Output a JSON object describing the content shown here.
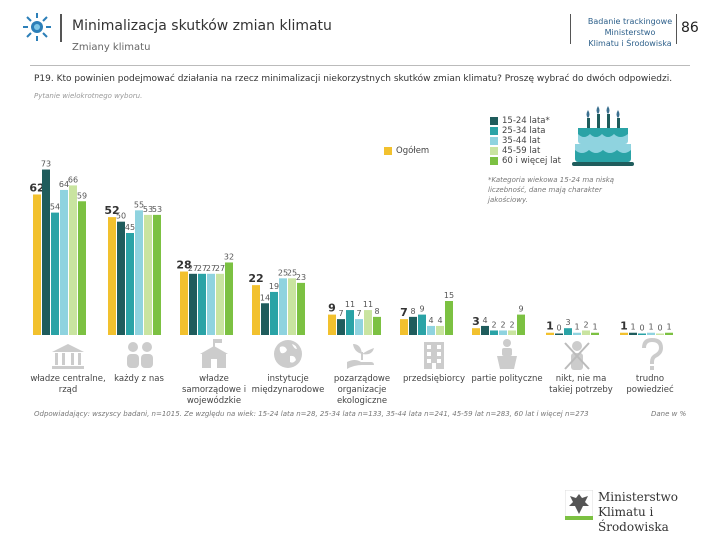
{
  "header": {
    "title": "Minimalizacja skutków zmian klimatu",
    "subtitle": "Zmiany klimatu",
    "survey_lines": [
      "Badanie trackingowe",
      "Ministerstwo",
      "Klimatu i Środowiska"
    ],
    "page_number": "86"
  },
  "question": "P19. Kto powinien podejmować działania na rzecz minimalizacji niekorzystnych skutków zmian klimatu? Proszę wybrać do dwóch odpowiedzi.",
  "question_note": "Pytanie wielokrotnego wyboru.",
  "footnote": "*Kategoria wiekowa 15-24 ma niską liczebność, dane mają charakter jakościowy.",
  "base_note": "Odpowiadający: wszyscy badani, n=1015. Ze względu na wiek: 15-24 lata n=28, 25-34 lata n=133, 35-44 lata n=241, 45-59 lat n=283, 60 lat i więcej n=273",
  "base_label": "Dane w %",
  "ministry_logo": [
    "Ministerstwo",
    "Klimatu i Środowiska"
  ],
  "colors": {
    "Ogółem": "#f2c12e",
    "15-24 lata*": "#1f5c5c",
    "25-34 lata": "#2aa3a6",
    "35-44 lat": "#8fd3df",
    "45-59 lat": "#c9e4a0",
    "60 i więcej lat": "#7cc142"
  },
  "chart_data": {
    "type": "bar",
    "title": "Kto powinien podejmować działania na rzecz minimalizacji niekorzystnych skutków zmian klimatu?",
    "unit": "%",
    "ylim": [
      0,
      75
    ],
    "categories": [
      "władze centralne, rząd",
      "każdy z nas",
      "władze samorządowe i wojewódzkie",
      "instytucje międzynarodowe",
      "pozarządowe organizacje ekologiczne",
      "przedsiębiorcy",
      "partie polityczne",
      "nikt, nie ma takiej potrzeby",
      "trudno powiedzieć"
    ],
    "series": [
      {
        "name": "Ogółem",
        "values": [
          62,
          52,
          28,
          22,
          9,
          7,
          3,
          1,
          1
        ]
      },
      {
        "name": "15-24 lata*",
        "values": [
          73,
          50,
          27,
          14,
          7,
          8,
          4,
          0,
          1
        ]
      },
      {
        "name": "25-34 lata",
        "values": [
          54,
          45,
          27,
          19,
          11,
          9,
          2,
          3,
          0
        ]
      },
      {
        "name": "35-44 lat",
        "values": [
          64,
          55,
          27,
          25,
          7,
          4,
          2,
          1,
          1
        ]
      },
      {
        "name": "45-59 lat",
        "values": [
          66,
          53,
          27,
          25,
          11,
          4,
          2,
          2,
          0
        ]
      },
      {
        "name": "60 i więcej lat",
        "values": [
          59,
          53,
          32,
          23,
          8,
          15,
          9,
          1,
          1
        ]
      }
    ]
  }
}
